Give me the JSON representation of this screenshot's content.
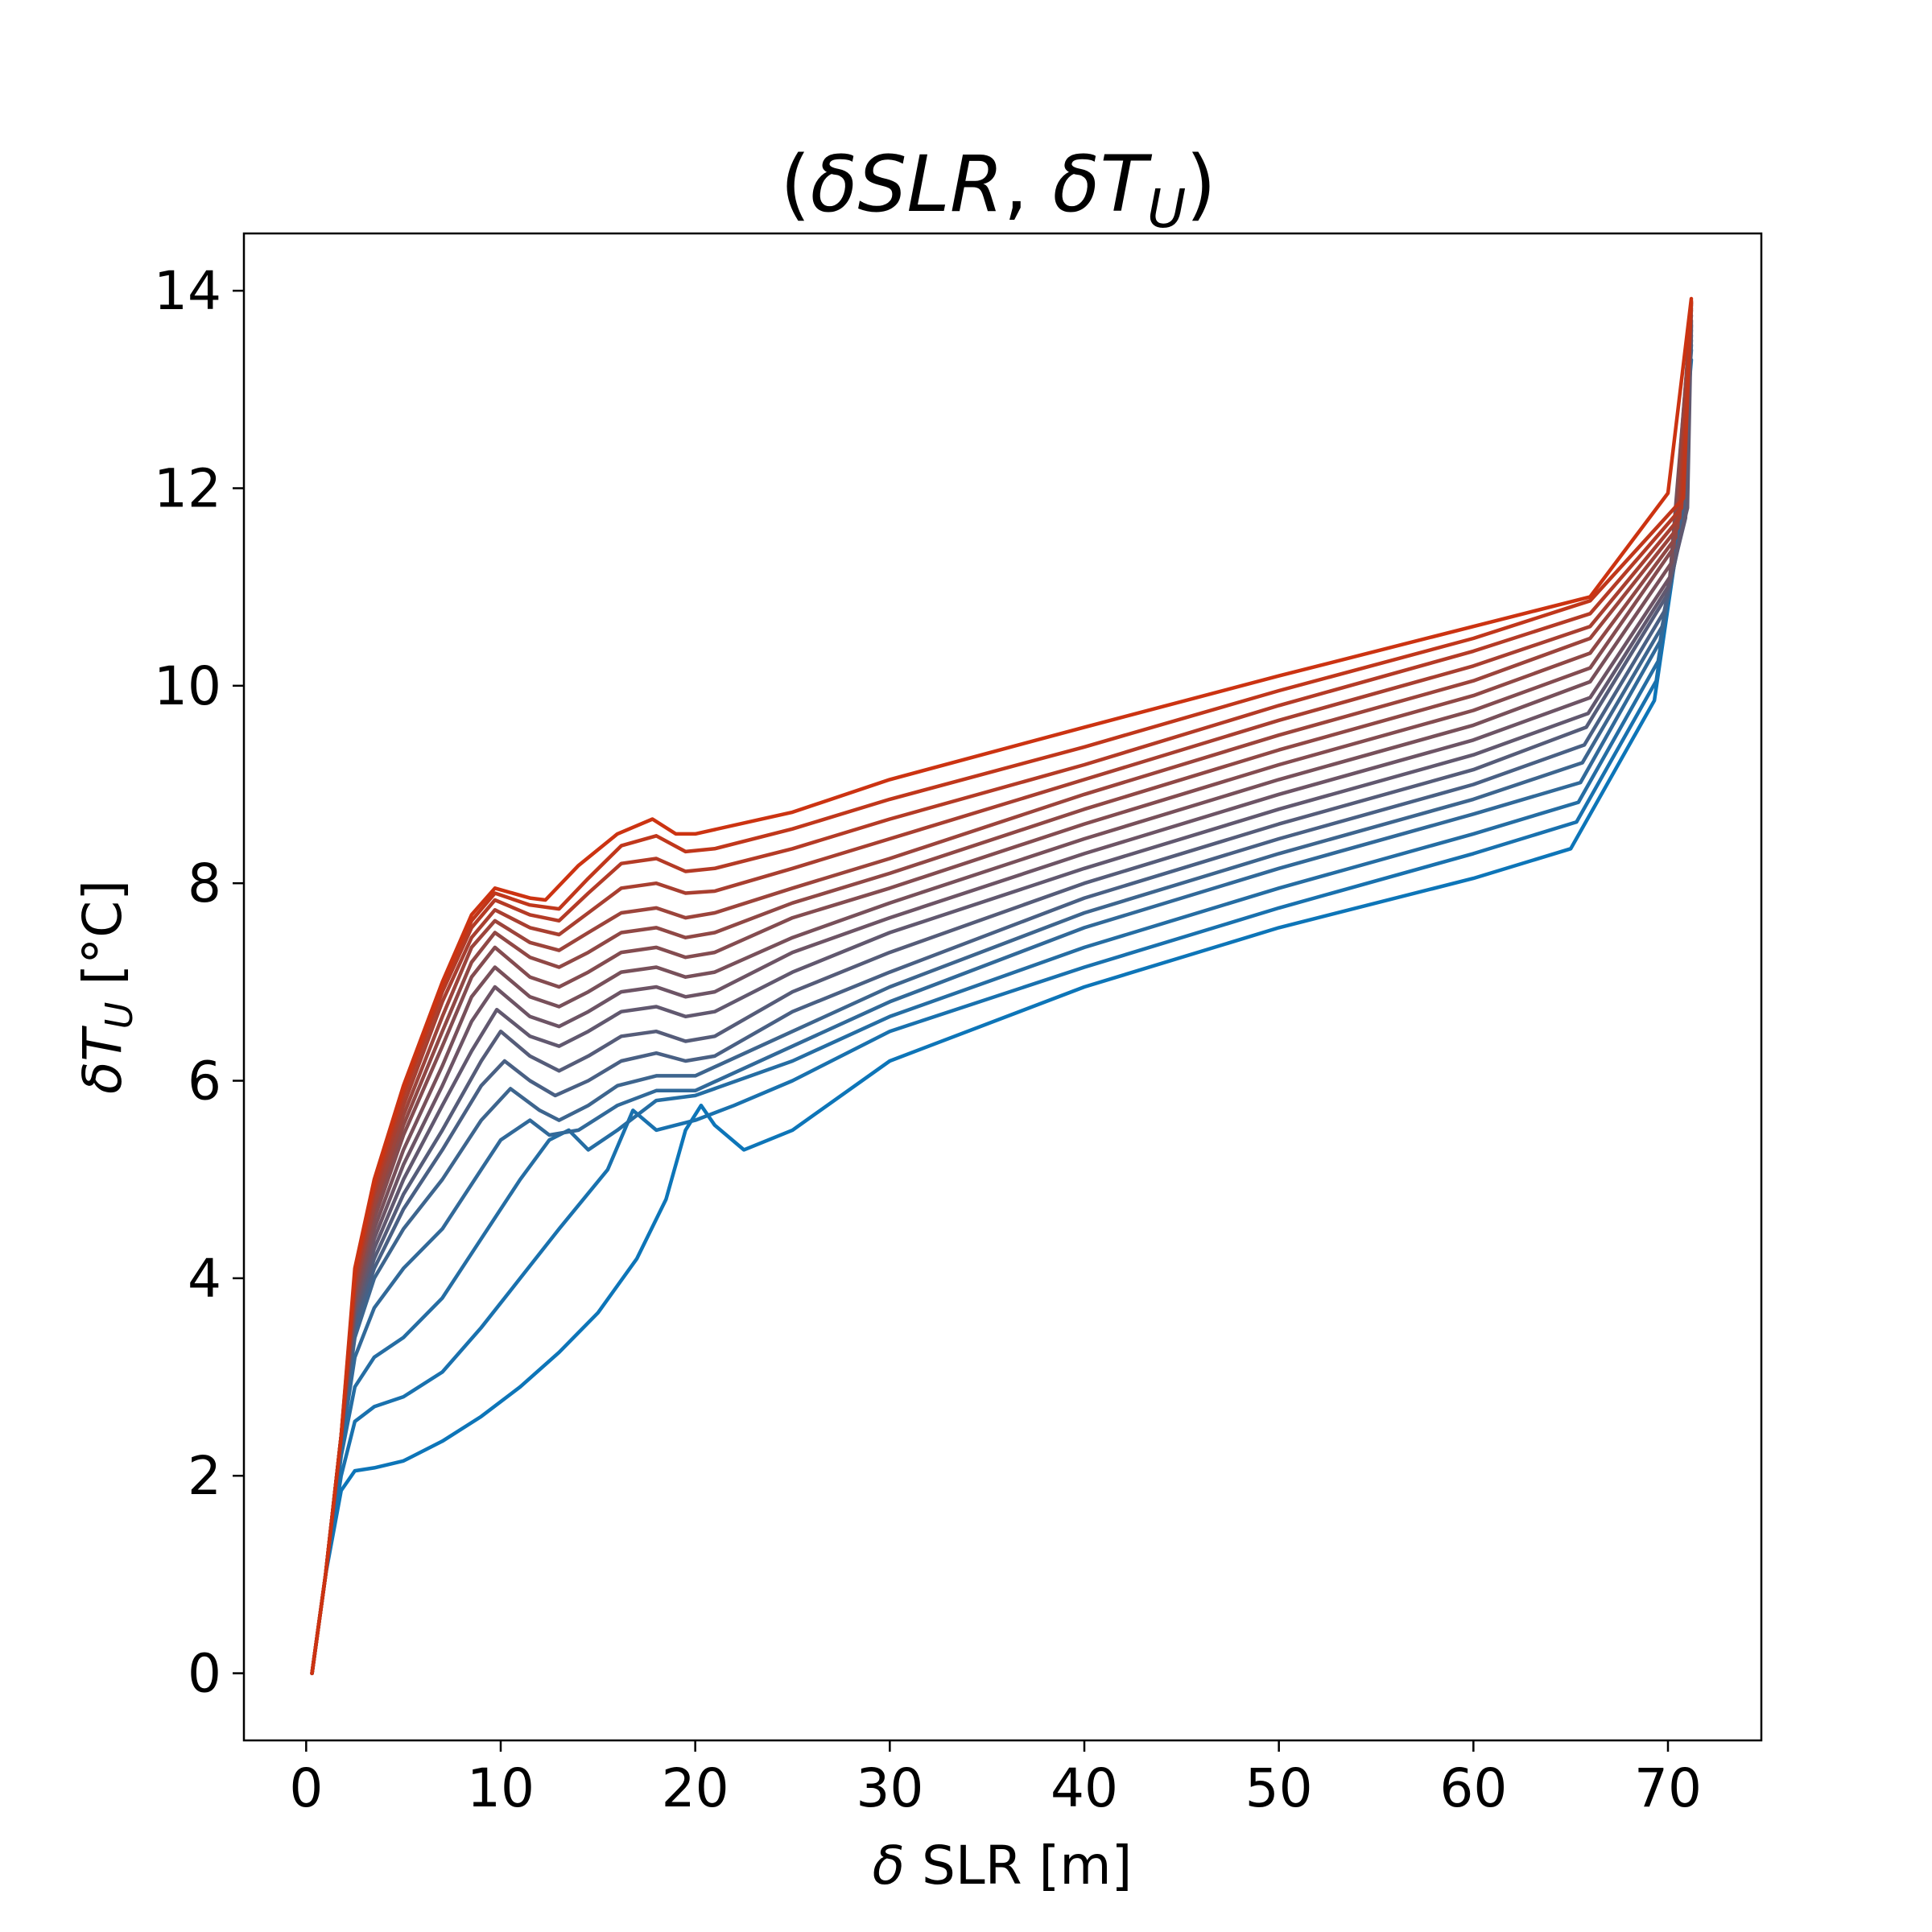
{
  "chart_data": {
    "type": "line",
    "title_parts": {
      "open": "(",
      "var1": "δSLR",
      "sep": ", ",
      "var2": "δT",
      "sub": "U",
      "close": ")"
    },
    "xlabel": {
      "prefix": "δ",
      "text": " SLR [m]"
    },
    "ylabel": {
      "var": "δT",
      "sub": "U",
      "unit": " [°C]"
    },
    "xlim": [
      -3.2,
      74.8
    ],
    "ylim": [
      -0.68,
      14.58
    ],
    "xticks": [
      0,
      10,
      20,
      30,
      40,
      50,
      60,
      70
    ],
    "yticks": [
      0,
      2,
      4,
      6,
      8,
      10,
      12,
      14
    ],
    "grid": false,
    "legend": "none",
    "color_low": "#0d75b8",
    "color_high": "#cc3311",
    "series": [
      {
        "x": [
          0.3,
          1,
          1.8,
          2.5,
          3.5,
          5,
          7,
          9,
          11,
          13,
          15,
          17,
          18.5,
          19.5,
          20.3,
          21,
          22.5,
          25,
          30,
          40,
          50,
          60,
          65,
          69.3,
          70.3,
          71.2
        ],
        "y": [
          0,
          1.0,
          1.85,
          2.05,
          2.08,
          2.15,
          2.35,
          2.6,
          2.9,
          3.25,
          3.65,
          4.2,
          4.8,
          5.5,
          5.75,
          5.55,
          5.3,
          5.5,
          6.2,
          6.95,
          7.55,
          8.05,
          8.35,
          9.85,
          11.2,
          13.3
        ]
      },
      {
        "x": [
          0.3,
          1,
          1.8,
          2.5,
          3.5,
          5,
          7,
          9,
          11,
          13,
          15.5,
          16.8,
          18,
          19,
          20,
          22,
          25,
          30,
          40,
          50,
          60,
          65.3,
          69.4,
          70.4,
          71.2
        ],
        "y": [
          0,
          1.0,
          2.0,
          2.55,
          2.7,
          2.8,
          3.05,
          3.5,
          4.0,
          4.5,
          5.1,
          5.7,
          5.5,
          5.55,
          5.6,
          5.75,
          6.0,
          6.5,
          7.15,
          7.75,
          8.3,
          8.62,
          10.05,
          11.4,
          13.4
        ]
      },
      {
        "x": [
          0.3,
          1,
          1.8,
          2.5,
          3.5,
          5,
          7,
          9,
          11,
          12.5,
          13.5,
          14.5,
          16,
          18,
          20,
          25,
          30,
          40,
          50,
          60,
          65.4,
          69.5,
          70.5,
          71.2
        ],
        "y": [
          0,
          1.0,
          2.2,
          2.9,
          3.2,
          3.4,
          3.8,
          4.4,
          5.0,
          5.4,
          5.5,
          5.3,
          5.5,
          5.8,
          5.85,
          6.2,
          6.65,
          7.35,
          7.95,
          8.5,
          8.82,
          10.25,
          11.5,
          13.45
        ]
      },
      {
        "x": [
          0.3,
          1,
          1.8,
          2.5,
          3.5,
          5,
          7,
          9,
          10,
          11.5,
          12.5,
          14,
          16,
          18,
          20,
          25,
          30,
          40,
          50,
          60,
          65.5,
          69.6,
          70.6,
          71.2
        ],
        "y": [
          0,
          1.0,
          2.3,
          3.2,
          3.7,
          4.1,
          4.5,
          5.1,
          5.4,
          5.6,
          5.45,
          5.5,
          5.75,
          5.9,
          5.9,
          6.35,
          6.8,
          7.55,
          8.15,
          8.7,
          9.02,
          10.45,
          11.55,
          13.5
        ]
      },
      {
        "x": [
          0.3,
          1,
          1.8,
          2.5,
          3.5,
          5,
          7,
          9,
          10.5,
          12,
          13,
          14.5,
          16,
          18,
          20,
          25,
          30,
          40,
          50,
          60,
          65.6,
          69.7,
          70.7,
          71.2
        ],
        "y": [
          0,
          1.0,
          2.4,
          3.4,
          4.0,
          4.5,
          5.0,
          5.6,
          5.92,
          5.7,
          5.6,
          5.75,
          5.95,
          6.05,
          6.05,
          6.5,
          6.95,
          7.7,
          8.3,
          8.85,
          9.22,
          10.6,
          11.6,
          13.55
        ]
      },
      {
        "x": [
          0.3,
          1,
          1.8,
          2.5,
          3.5,
          5,
          7,
          9,
          10.2,
          11.5,
          12.8,
          14.5,
          16.2,
          18,
          19.5,
          21,
          25,
          30,
          40,
          50,
          60,
          65.7,
          69.8,
          70.8,
          71.2
        ],
        "y": [
          0,
          1.0,
          2.4,
          3.5,
          4.1,
          4.7,
          5.3,
          5.95,
          6.2,
          6.0,
          5.85,
          6.0,
          6.2,
          6.28,
          6.2,
          6.25,
          6.7,
          7.1,
          7.85,
          8.45,
          9.0,
          9.4,
          10.75,
          11.65,
          13.6
        ]
      },
      {
        "x": [
          0.3,
          1,
          1.8,
          2.5,
          3.5,
          5,
          7,
          9,
          10,
          11.5,
          13,
          14.5,
          16.2,
          18,
          19.5,
          21,
          25,
          30,
          40,
          50,
          60,
          65.8,
          69.9,
          70.9,
          71.2
        ],
        "y": [
          0,
          1.0,
          2.4,
          3.6,
          4.2,
          4.85,
          5.5,
          6.2,
          6.5,
          6.25,
          6.1,
          6.25,
          6.45,
          6.5,
          6.4,
          6.45,
          6.9,
          7.3,
          8.0,
          8.6,
          9.15,
          9.58,
          10.9,
          11.7,
          13.65
        ]
      },
      {
        "x": [
          0.3,
          1,
          1.8,
          2.5,
          3.5,
          5,
          7,
          8.5,
          9.8,
          11.5,
          13,
          14.5,
          16.2,
          18,
          19.5,
          21,
          25,
          30,
          40,
          50,
          60,
          65.9,
          70,
          71,
          71.2
        ],
        "y": [
          0,
          1.0,
          2.4,
          3.65,
          4.3,
          5.0,
          5.75,
          6.3,
          6.72,
          6.45,
          6.35,
          6.5,
          6.7,
          6.75,
          6.65,
          6.7,
          7.1,
          7.5,
          8.15,
          8.75,
          9.3,
          9.72,
          11.0,
          11.8,
          13.7
        ]
      },
      {
        "x": [
          0.3,
          1,
          1.8,
          2.5,
          3.5,
          5,
          7,
          8.5,
          9.7,
          11.5,
          13,
          14.5,
          16.2,
          18,
          19.5,
          21,
          25,
          30,
          40,
          50,
          60,
          66,
          70.1,
          71.2
        ],
        "y": [
          0,
          1.0,
          2.4,
          3.7,
          4.4,
          5.15,
          5.95,
          6.6,
          6.95,
          6.65,
          6.55,
          6.7,
          6.9,
          6.95,
          6.85,
          6.9,
          7.3,
          7.65,
          8.3,
          8.9,
          9.45,
          9.88,
          11.1,
          13.75
        ]
      },
      {
        "x": [
          0.3,
          1,
          1.8,
          2.5,
          3.5,
          5,
          7,
          8.5,
          9.7,
          11.5,
          13,
          14.5,
          16.2,
          18,
          19.5,
          21,
          25,
          30,
          40,
          50,
          60,
          66,
          70.2,
          71.2
        ],
        "y": [
          0,
          1.0,
          2.4,
          3.75,
          4.5,
          5.3,
          6.15,
          6.85,
          7.15,
          6.85,
          6.75,
          6.9,
          7.1,
          7.15,
          7.05,
          7.1,
          7.45,
          7.8,
          8.45,
          9.05,
          9.6,
          10.04,
          11.25,
          13.8
        ]
      },
      {
        "x": [
          0.3,
          1,
          1.8,
          2.5,
          3.5,
          5,
          7,
          8.5,
          9.7,
          11.5,
          13,
          14.5,
          16.2,
          18,
          19.5,
          21,
          25,
          30,
          40,
          50,
          60,
          66,
          70.3,
          71.2
        ],
        "y": [
          0,
          1.0,
          2.4,
          3.8,
          4.6,
          5.45,
          6.35,
          7.05,
          7.35,
          7.05,
          6.95,
          7.1,
          7.3,
          7.35,
          7.25,
          7.3,
          7.65,
          7.95,
          8.6,
          9.2,
          9.75,
          10.18,
          11.4,
          13.82
        ]
      },
      {
        "x": [
          0.3,
          1,
          1.8,
          2.5,
          3.5,
          5,
          7,
          8.5,
          9.7,
          11.5,
          13,
          14.5,
          16.2,
          18,
          19.5,
          21,
          25,
          30,
          40,
          50,
          60,
          66,
          70.4,
          71.2
        ],
        "y": [
          0,
          1.0,
          2.4,
          3.85,
          4.7,
          5.55,
          6.5,
          7.2,
          7.5,
          7.25,
          7.15,
          7.3,
          7.5,
          7.55,
          7.45,
          7.5,
          7.8,
          8.1,
          8.75,
          9.35,
          9.9,
          10.33,
          11.5,
          13.85
        ]
      },
      {
        "x": [
          0.3,
          1,
          1.8,
          2.5,
          3.5,
          5,
          7,
          8.5,
          9.7,
          11.5,
          13,
          14.5,
          16.2,
          18,
          19.5,
          21,
          25,
          30,
          40,
          50,
          60,
          66,
          70.5,
          71.2
        ],
        "y": [
          0,
          1.0,
          2.4,
          3.9,
          4.75,
          5.65,
          6.65,
          7.35,
          7.62,
          7.4,
          7.32,
          7.5,
          7.7,
          7.75,
          7.65,
          7.7,
          7.95,
          8.25,
          8.9,
          9.5,
          10.05,
          10.48,
          11.6,
          13.87
        ]
      },
      {
        "x": [
          0.3,
          1,
          1.8,
          2.5,
          3.5,
          5,
          7,
          8.5,
          9.7,
          11.5,
          13,
          14.5,
          16.2,
          18,
          19.5,
          21,
          25,
          30,
          40,
          50,
          60,
          66,
          70.6,
          71.2
        ],
        "y": [
          0,
          1.0,
          2.4,
          3.95,
          4.85,
          5.75,
          6.8,
          7.45,
          7.73,
          7.55,
          7.48,
          7.7,
          7.95,
          8.0,
          7.9,
          7.92,
          8.15,
          8.45,
          9.05,
          9.65,
          10.2,
          10.6,
          11.7,
          13.88
        ]
      },
      {
        "x": [
          0.3,
          1,
          1.8,
          2.5,
          3.5,
          5,
          7,
          8.5,
          9.7,
          11.5,
          13,
          14.5,
          16.2,
          18,
          19.5,
          21,
          25,
          30,
          40,
          50,
          60,
          66,
          70.7,
          71.2
        ],
        "y": [
          0,
          1.0,
          2.4,
          4.0,
          4.9,
          5.85,
          6.9,
          7.55,
          7.83,
          7.68,
          7.62,
          7.9,
          8.2,
          8.25,
          8.12,
          8.15,
          8.35,
          8.65,
          9.2,
          9.8,
          10.35,
          10.73,
          11.8,
          13.89
        ]
      },
      {
        "x": [
          0.3,
          1,
          1.8,
          2.5,
          3.5,
          5,
          7,
          8.5,
          9.7,
          11.5,
          13,
          14.5,
          16.2,
          18,
          19.5,
          21,
          25,
          30,
          40,
          50,
          60,
          66,
          70.8,
          71.2
        ],
        "y": [
          0,
          1.0,
          2.4,
          4.05,
          4.95,
          5.9,
          6.95,
          7.62,
          7.9,
          7.78,
          7.74,
          8.05,
          8.38,
          8.48,
          8.32,
          8.35,
          8.55,
          8.85,
          9.38,
          9.95,
          10.48,
          10.86,
          11.9,
          13.9
        ]
      },
      {
        "x": [
          0.3,
          1,
          1.8,
          2.5,
          3.5,
          5,
          7,
          8.5,
          9.7,
          11.5,
          12.3,
          14,
          16,
          17.8,
          19,
          20,
          25,
          30,
          40,
          50,
          60,
          66,
          70,
          71.2
        ],
        "y": [
          0,
          1.0,
          2.4,
          4.1,
          5.0,
          5.95,
          7.0,
          7.68,
          7.95,
          7.85,
          7.83,
          8.18,
          8.5,
          8.65,
          8.5,
          8.5,
          8.72,
          9.05,
          9.58,
          10.1,
          10.6,
          10.9,
          11.95,
          13.92
        ]
      }
    ]
  }
}
